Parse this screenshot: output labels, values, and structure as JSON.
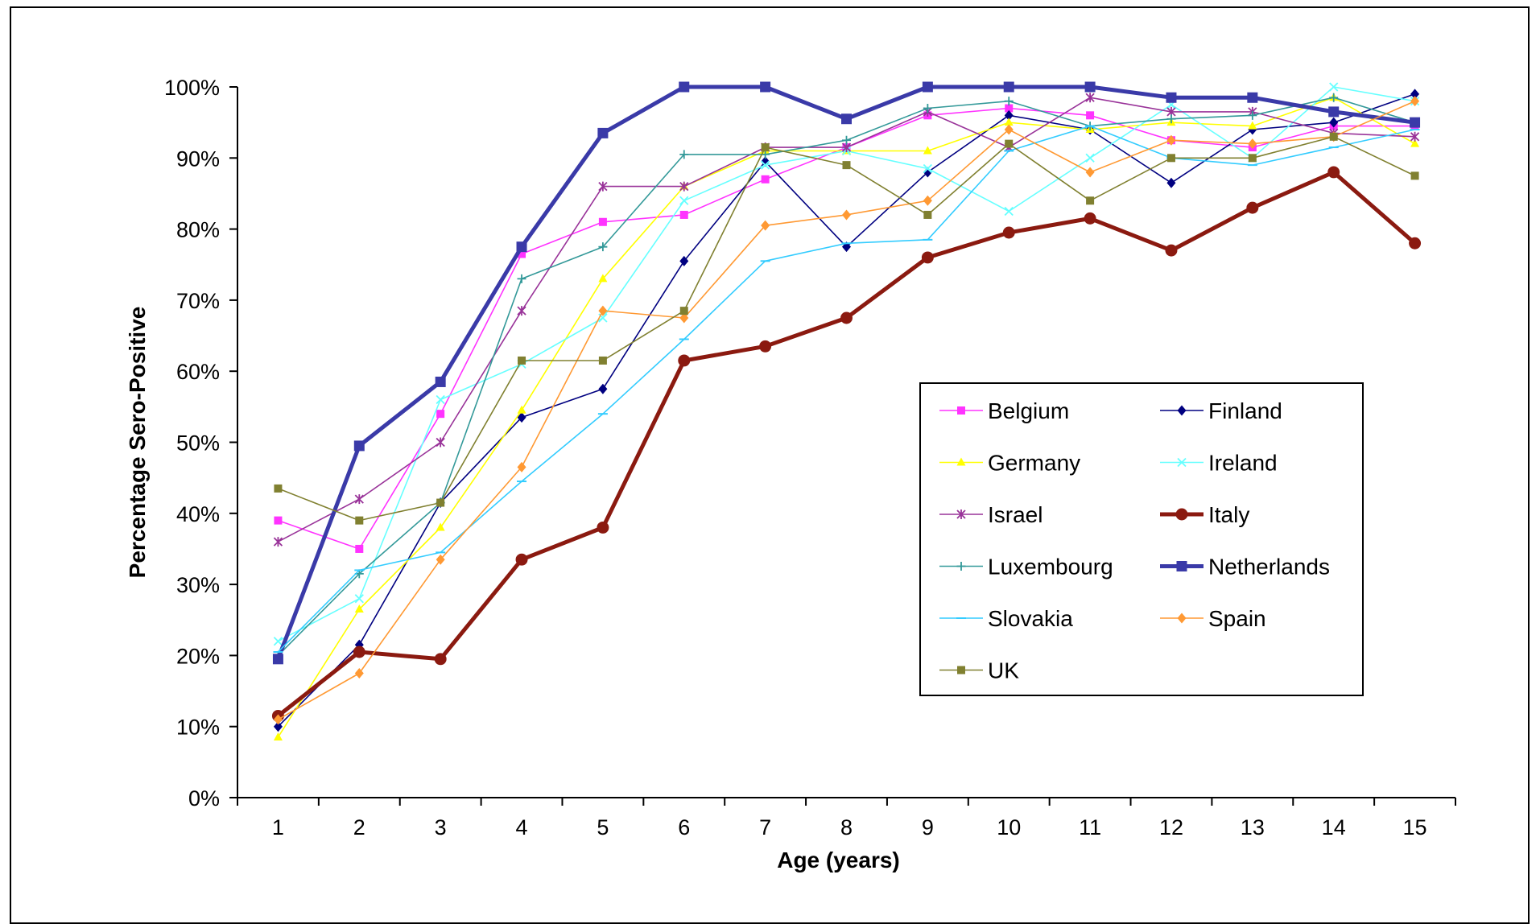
{
  "chart_data": {
    "type": "line",
    "title": "",
    "xlabel": "Age (years)",
    "ylabel": "Percentage Sero-Positive",
    "x": [
      1,
      2,
      3,
      4,
      5,
      6,
      7,
      8,
      9,
      10,
      11,
      12,
      13,
      14,
      15
    ],
    "y_ticks": [
      "0%",
      "10%",
      "20%",
      "30%",
      "40%",
      "50%",
      "60%",
      "70%",
      "80%",
      "90%",
      "100%"
    ],
    "ylim": [
      0,
      100
    ],
    "grid": false,
    "legend_position": "right-center",
    "series": [
      {
        "name": "Belgium",
        "color": "#ff33ff",
        "marker": "square",
        "values": [
          39,
          35,
          54,
          76.5,
          81,
          82,
          87,
          91.5,
          96,
          97,
          96,
          92.5,
          91.5,
          94.5,
          94.5
        ]
      },
      {
        "name": "Finland",
        "color": "#000080",
        "marker": "diamond",
        "values": [
          10,
          21.5,
          41.5,
          53.5,
          57.5,
          75.5,
          89.5,
          77.5,
          88,
          96,
          94,
          86.5,
          94,
          95,
          99
        ]
      },
      {
        "name": "Germany",
        "color": "#ffff00",
        "marker": "triangle",
        "values": [
          8.5,
          26.5,
          38,
          54.5,
          73,
          86,
          91,
          91,
          91,
          95,
          94,
          95,
          94.5,
          98.5,
          92
        ]
      },
      {
        "name": "Ireland",
        "color": "#66ffff",
        "marker": "x",
        "values": [
          22,
          28,
          56,
          61,
          67.5,
          84,
          89,
          91,
          88.5,
          82.5,
          90,
          97.5,
          90,
          100,
          98
        ]
      },
      {
        "name": "Israel",
        "color": "#993399",
        "marker": "star",
        "values": [
          36,
          42,
          50,
          68.5,
          86,
          86,
          91.5,
          91.5,
          96.5,
          91.5,
          98.5,
          96.5,
          96.5,
          93.5,
          93
        ]
      },
      {
        "name": "Italy",
        "color": "#8b1a10",
        "marker": "circle",
        "values": [
          11.5,
          20.5,
          19.5,
          33.5,
          38,
          61.5,
          63.5,
          67.5,
          76,
          79.5,
          81.5,
          77,
          83,
          88,
          78
        ]
      },
      {
        "name": "Luxembourg",
        "color": "#339999",
        "marker": "plus",
        "values": [
          20,
          31.5,
          41.5,
          73,
          77.5,
          90.5,
          90.5,
          92.5,
          97,
          98,
          94.5,
          95.5,
          96,
          98.5,
          95
        ]
      },
      {
        "name": "Netherlands",
        "color": "#3a3aa8",
        "marker": "square",
        "values": [
          19.5,
          49.5,
          58.5,
          77.5,
          93.5,
          100,
          100,
          95.5,
          100,
          100,
          100,
          98.5,
          98.5,
          96.5,
          95
        ]
      },
      {
        "name": "Slovakia",
        "color": "#33ccff",
        "marker": "dash",
        "values": [
          20.5,
          32,
          34.5,
          44.5,
          54,
          64.5,
          75.5,
          78,
          78.5,
          91,
          94.5,
          90,
          89,
          91.5,
          94
        ]
      },
      {
        "name": "Spain",
        "color": "#ff9933",
        "marker": "diamond",
        "values": [
          11,
          17.5,
          33.5,
          46.5,
          68.5,
          67.5,
          80.5,
          82,
          84,
          94,
          88,
          92.5,
          92,
          93,
          98
        ]
      },
      {
        "name": "UK",
        "color": "#808030",
        "marker": "square",
        "values": [
          43.5,
          39,
          41.5,
          61.5,
          61.5,
          68.5,
          91.5,
          89,
          82,
          92,
          84,
          90,
          90,
          93,
          87.5
        ]
      }
    ]
  }
}
